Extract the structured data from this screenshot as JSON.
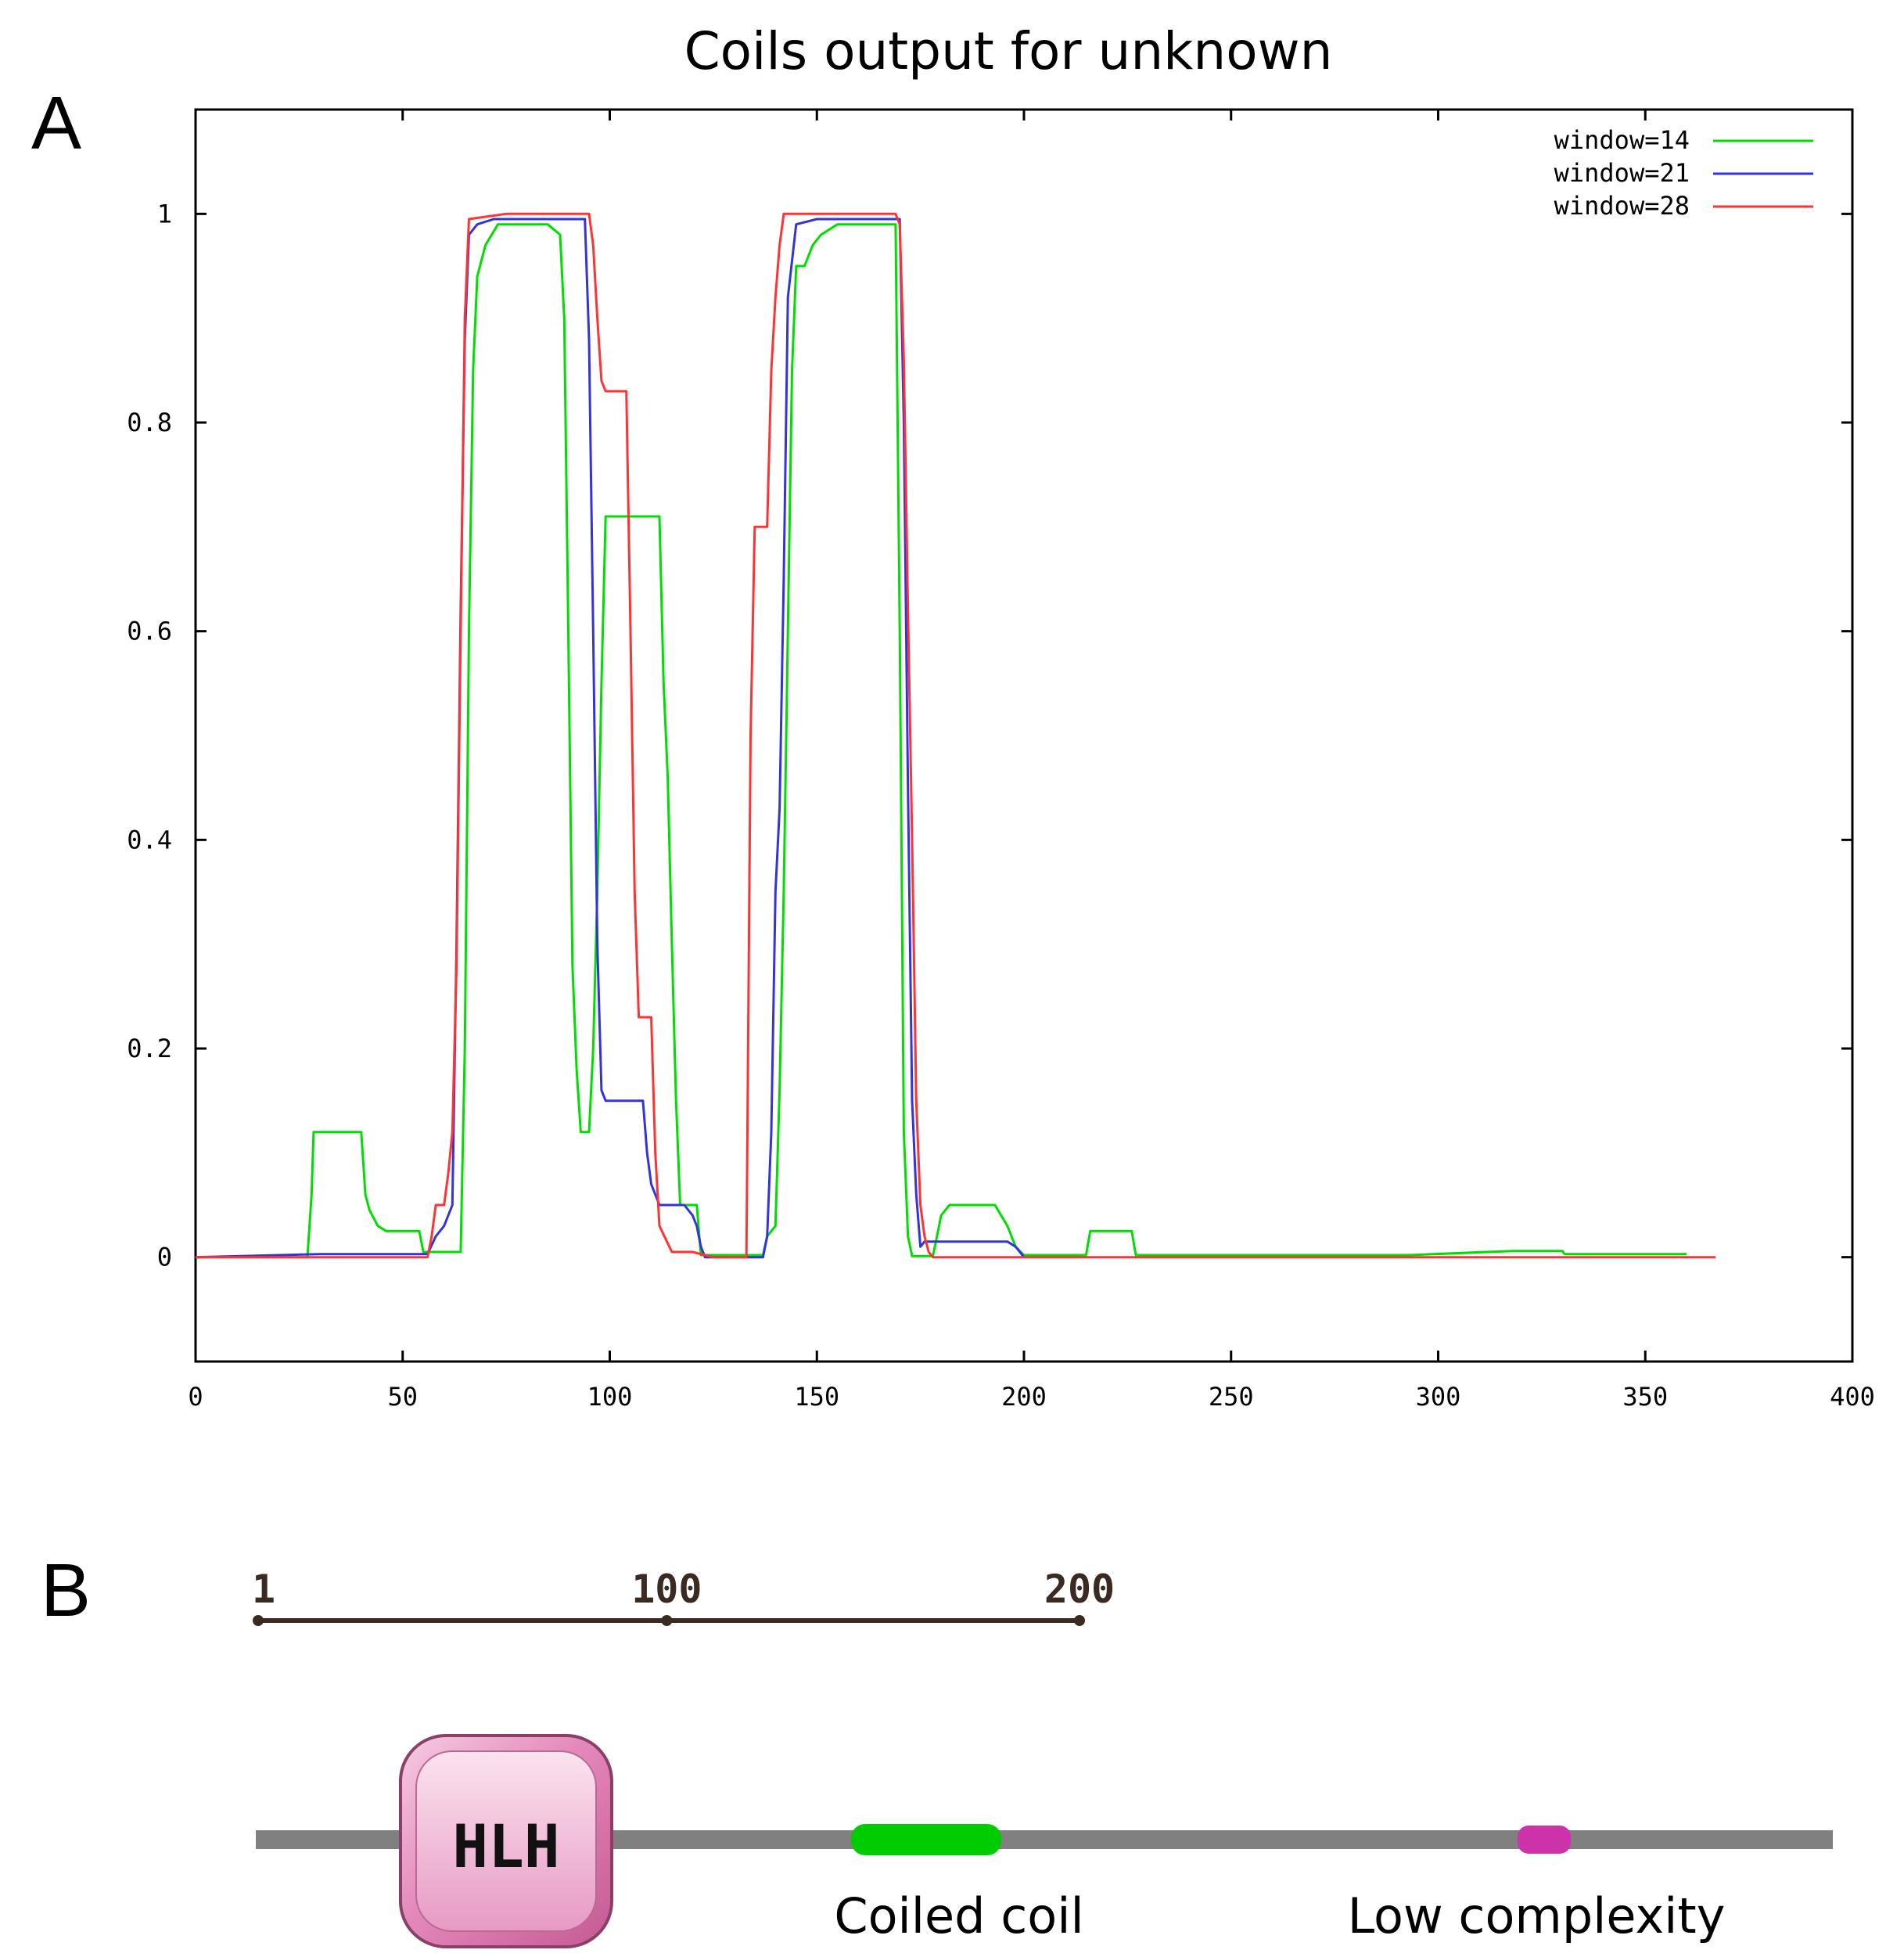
{
  "panel_a": {
    "letter": "A",
    "title": "Coils output for unknown"
  },
  "panel_b": {
    "letter": "B",
    "scale_labels": [
      "1",
      "100",
      "200"
    ],
    "scale_values": [
      1,
      100,
      200
    ],
    "domain_label": "HLH",
    "coiled_coil_label": "Coiled coil",
    "low_complexity_label": "Low complexity",
    "colors": {
      "backbone": "#808080",
      "hlh_fill": "#e07ab0",
      "coiled_coil": "#00cc00",
      "low_complexity": "#cc33aa"
    }
  },
  "chart_data": {
    "type": "line",
    "title": "Coils output for unknown",
    "xlabel": "",
    "ylabel": "",
    "xlim": [
      0,
      400
    ],
    "ylim": [
      -0.1,
      1.1
    ],
    "x_ticks": [
      0,
      50,
      100,
      150,
      200,
      250,
      300,
      350,
      400
    ],
    "y_ticks": [
      0,
      0.2,
      0.4,
      0.6,
      0.8,
      1
    ],
    "x_tick_labels": [
      "0",
      "50",
      "100",
      "150",
      "200",
      "250",
      "300",
      "350",
      "400"
    ],
    "y_tick_labels": [
      "0",
      "0.2",
      "0.4",
      "0.6",
      "0.8",
      "1"
    ],
    "legend_position": "top-right",
    "series": [
      {
        "name": "window=14",
        "color": "#00dd00",
        "points": [
          [
            0,
            0
          ],
          [
            18,
            0
          ],
          [
            27,
            0
          ],
          [
            28,
            0.06
          ],
          [
            28.5,
            0.12
          ],
          [
            40,
            0.12
          ],
          [
            41,
            0.06
          ],
          [
            42,
            0.045
          ],
          [
            44,
            0.03
          ],
          [
            46,
            0.025
          ],
          [
            54,
            0.025
          ],
          [
            55,
            0.005
          ],
          [
            64,
            0.005
          ],
          [
            65,
            0.2
          ],
          [
            66,
            0.6
          ],
          [
            67,
            0.85
          ],
          [
            68,
            0.94
          ],
          [
            70,
            0.97
          ],
          [
            73,
            0.99
          ],
          [
            85,
            0.99
          ],
          [
            88,
            0.98
          ],
          [
            89,
            0.9
          ],
          [
            90,
            0.6
          ],
          [
            91,
            0.28
          ],
          [
            92,
            0.18
          ],
          [
            93,
            0.12
          ],
          [
            95,
            0.12
          ],
          [
            96,
            0.2
          ],
          [
            97,
            0.35
          ],
          [
            98,
            0.55
          ],
          [
            99,
            0.71
          ],
          [
            112,
            0.71
          ],
          [
            113,
            0.55
          ],
          [
            114,
            0.46
          ],
          [
            115,
            0.3
          ],
          [
            116,
            0.15
          ],
          [
            117,
            0.05
          ],
          [
            121,
            0.05
          ],
          [
            122,
            0.002
          ],
          [
            137,
            0.002
          ],
          [
            138,
            0.02
          ],
          [
            140,
            0.03
          ],
          [
            141,
            0.16
          ],
          [
            142,
            0.35
          ],
          [
            143,
            0.6
          ],
          [
            144,
            0.85
          ],
          [
            145,
            0.95
          ],
          [
            147,
            0.95
          ],
          [
            149,
            0.97
          ],
          [
            151,
            0.98
          ],
          [
            155,
            0.99
          ],
          [
            169,
            0.99
          ],
          [
            170,
            0.6
          ],
          [
            171,
            0.12
          ],
          [
            172,
            0.02
          ],
          [
            173,
            0.001
          ],
          [
            178,
            0.001
          ],
          [
            179,
            0.02
          ],
          [
            180,
            0.04
          ],
          [
            182,
            0.05
          ],
          [
            193,
            0.05
          ],
          [
            196,
            0.03
          ],
          [
            198,
            0.01
          ],
          [
            200,
            0.002
          ],
          [
            215,
            0.002
          ],
          [
            216,
            0.025
          ],
          [
            226,
            0.025
          ],
          [
            227,
            0.002
          ],
          [
            280,
            0.002
          ],
          [
            293,
            0.002
          ],
          [
            318,
            0.006
          ],
          [
            330,
            0.006
          ],
          [
            330.5,
            0.003
          ],
          [
            340,
            0.003
          ],
          [
            348,
            0.003
          ],
          [
            360,
            0.003
          ]
        ]
      },
      {
        "name": "window=21",
        "color": "#3333dd",
        "points": [
          [
            0,
            0
          ],
          [
            30,
            0.003
          ],
          [
            54,
            0.003
          ],
          [
            56,
            0.003
          ],
          [
            58,
            0.02
          ],
          [
            60,
            0.03
          ],
          [
            62,
            0.05
          ],
          [
            63,
            0.3
          ],
          [
            64,
            0.62
          ],
          [
            65,
            0.88
          ],
          [
            66,
            0.98
          ],
          [
            68,
            0.99
          ],
          [
            72,
            0.995
          ],
          [
            87,
            0.995
          ],
          [
            94,
            0.995
          ],
          [
            95,
            0.88
          ],
          [
            96,
            0.6
          ],
          [
            97,
            0.3
          ],
          [
            98,
            0.16
          ],
          [
            99,
            0.15
          ],
          [
            108,
            0.15
          ],
          [
            109,
            0.1
          ],
          [
            110,
            0.07
          ],
          [
            112,
            0.05
          ],
          [
            118,
            0.05
          ],
          [
            120,
            0.04
          ],
          [
            121,
            0.03
          ],
          [
            122,
            0.01
          ],
          [
            123,
            0
          ],
          [
            137,
            0
          ],
          [
            138,
            0.02
          ],
          [
            139,
            0.12
          ],
          [
            140,
            0.35
          ],
          [
            141,
            0.43
          ],
          [
            142,
            0.65
          ],
          [
            143,
            0.92
          ],
          [
            145,
            0.99
          ],
          [
            150,
            0.995
          ],
          [
            167,
            0.995
          ],
          [
            170,
            0.995
          ],
          [
            171,
            0.8
          ],
          [
            172,
            0.45
          ],
          [
            173,
            0.15
          ],
          [
            174,
            0.06
          ],
          [
            175,
            0.01
          ],
          [
            176,
            0.015
          ],
          [
            185,
            0.015
          ],
          [
            196,
            0.015
          ],
          [
            198,
            0.01
          ],
          [
            200,
            0
          ]
        ]
      },
      {
        "name": "window=28",
        "color": "#ff3333",
        "points": [
          [
            0,
            0
          ],
          [
            20,
            0
          ],
          [
            50,
            0
          ],
          [
            56,
            0
          ],
          [
            57,
            0.02
          ],
          [
            58,
            0.05
          ],
          [
            60,
            0.05
          ],
          [
            61,
            0.08
          ],
          [
            62,
            0.12
          ],
          [
            63,
            0.28
          ],
          [
            64,
            0.6
          ],
          [
            65,
            0.9
          ],
          [
            66,
            0.995
          ],
          [
            75,
            1
          ],
          [
            95,
            1
          ],
          [
            96,
            0.97
          ],
          [
            97,
            0.9
          ],
          [
            98,
            0.84
          ],
          [
            99,
            0.83
          ],
          [
            104,
            0.83
          ],
          [
            105,
            0.6
          ],
          [
            106,
            0.35
          ],
          [
            107,
            0.23
          ],
          [
            110,
            0.23
          ],
          [
            111,
            0.1
          ],
          [
            112,
            0.03
          ],
          [
            115,
            0.005
          ],
          [
            120,
            0.005
          ],
          [
            125,
            0
          ],
          [
            133,
            0
          ],
          [
            134,
            0.5
          ],
          [
            135,
            0.7
          ],
          [
            138,
            0.7
          ],
          [
            139,
            0.85
          ],
          [
            140,
            0.92
          ],
          [
            141,
            0.97
          ],
          [
            142,
            1
          ],
          [
            150,
            1
          ],
          [
            169,
            1
          ],
          [
            170,
            0.99
          ],
          [
            171,
            0.86
          ],
          [
            172,
            0.62
          ],
          [
            173,
            0.4
          ],
          [
            174,
            0.15
          ],
          [
            175,
            0.05
          ],
          [
            176,
            0.02
          ],
          [
            177,
            0.005
          ],
          [
            178,
            0
          ],
          [
            200,
            0
          ],
          [
            367,
            0
          ]
        ]
      }
    ]
  }
}
